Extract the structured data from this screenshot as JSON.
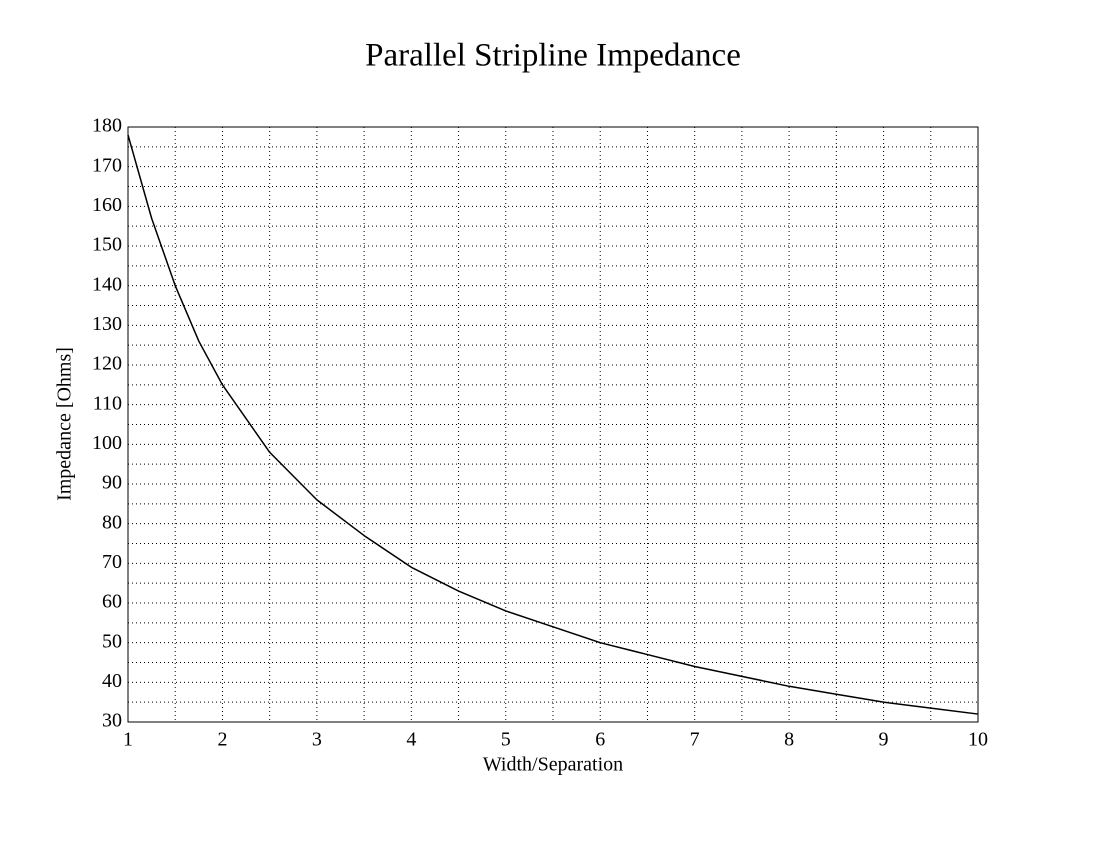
{
  "chart_data": {
    "type": "line",
    "title": "Parallel Stripline Impedance",
    "x_label": "Width/Separation",
    "y_label": "Impedance [Ohms]",
    "x": [
      1,
      1.25,
      1.5,
      1.75,
      2,
      2.5,
      3,
      3.5,
      4,
      4.5,
      5,
      5.5,
      6,
      6.5,
      7,
      7.5,
      8,
      8.5,
      9,
      9.5,
      10
    ],
    "series": [
      {
        "color": "#000000",
        "values": [
          178,
          157,
          140,
          126,
          115,
          98,
          86,
          77,
          69,
          63,
          58,
          54,
          50,
          47,
          44,
          41.5,
          39,
          37,
          35,
          33.5,
          32
        ]
      }
    ],
    "xlim": [
      1,
      10
    ],
    "xticks": [
      1,
      2,
      3,
      4,
      5,
      6,
      7,
      8,
      9,
      10
    ],
    "ylim": [
      30,
      180
    ],
    "yticks": [
      30,
      40,
      50,
      60,
      70,
      80,
      90,
      100,
      110,
      120,
      130,
      140,
      150,
      160,
      170,
      180
    ],
    "grid": true,
    "minor_grid": true
  }
}
